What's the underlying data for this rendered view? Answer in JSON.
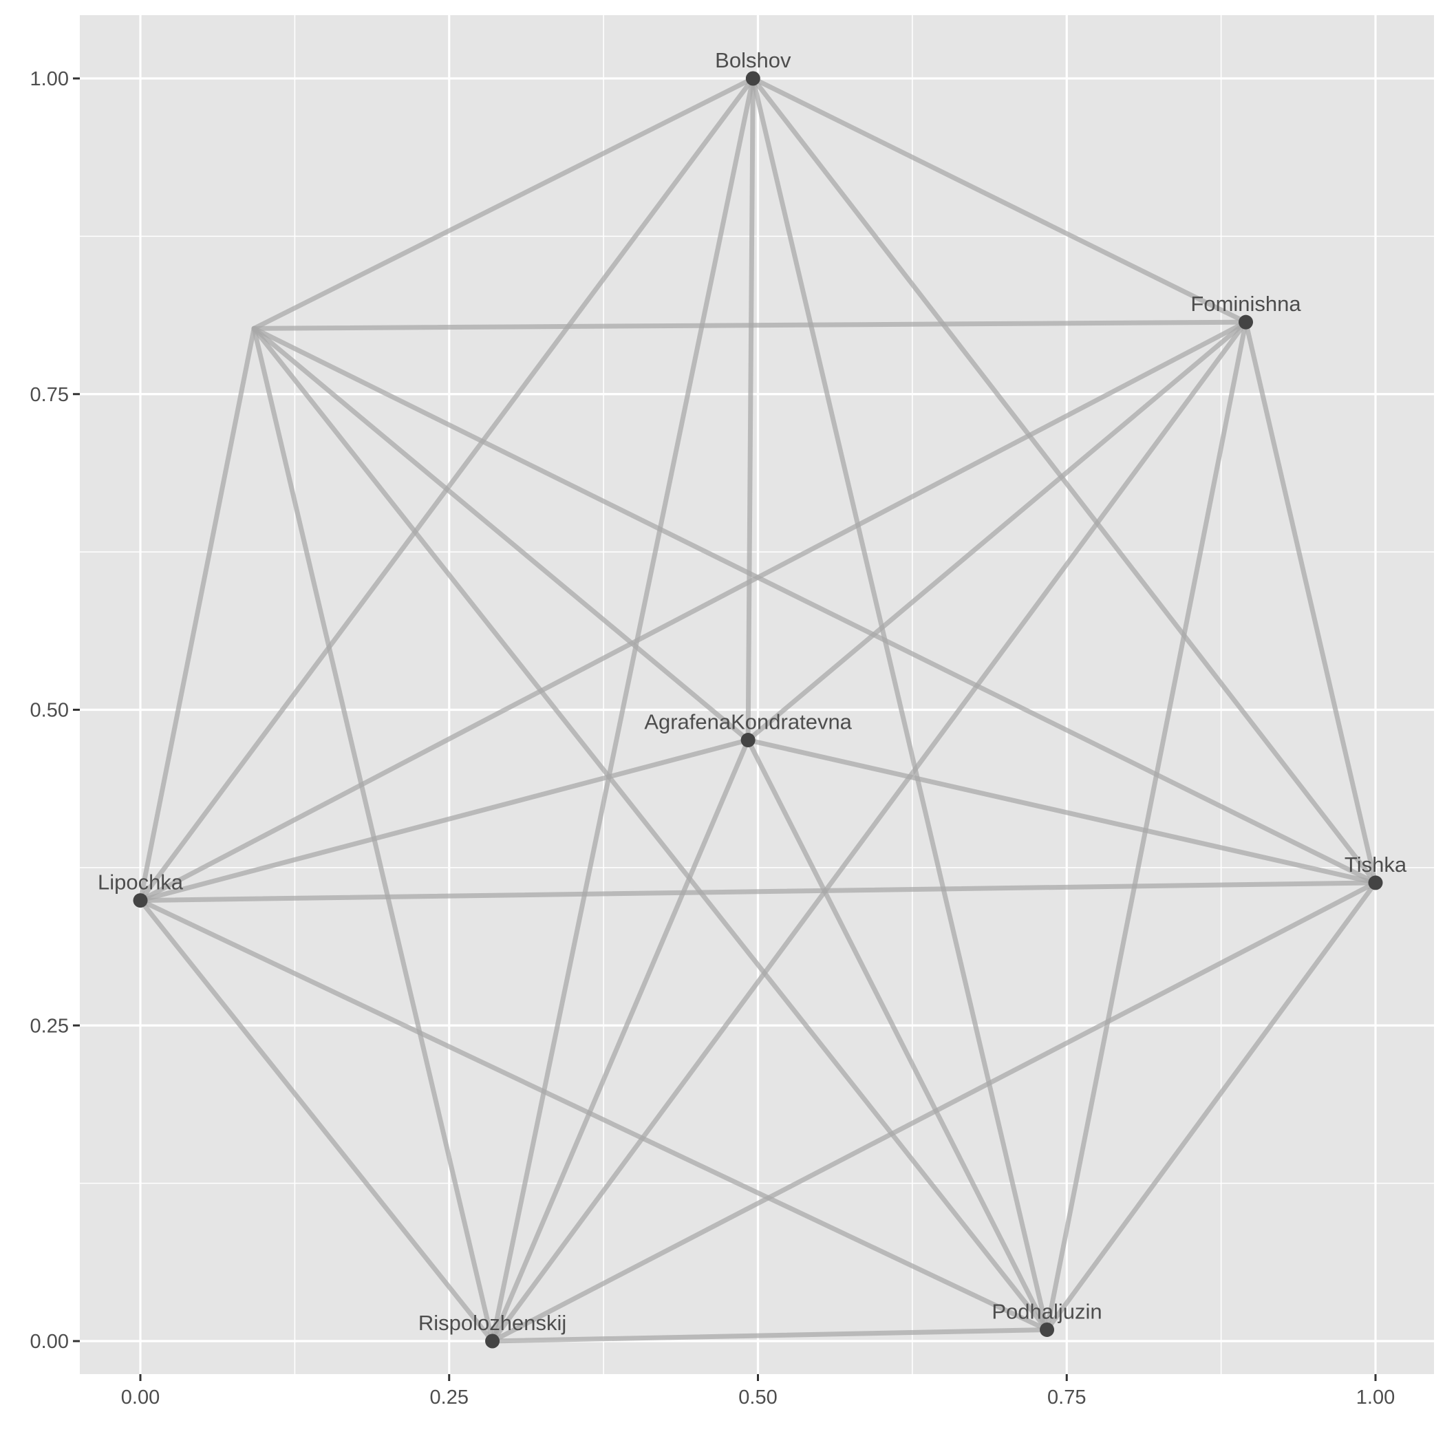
{
  "chart_data": {
    "type": "network",
    "title": "",
    "xlabel": "",
    "ylabel": "",
    "xlim": [
      -0.05,
      1.05
    ],
    "ylim": [
      -0.05,
      1.05
    ],
    "x_ticks": [
      "0.00",
      "0.25",
      "0.50",
      "0.75",
      "1.00"
    ],
    "y_ticks": [
      "0.00",
      "0.25",
      "0.50",
      "0.75",
      "1.00"
    ],
    "x_tick_values": [
      0,
      0.25,
      0.5,
      0.75,
      1
    ],
    "y_tick_values": [
      0,
      0.25,
      0.5,
      0.75,
      1
    ],
    "grid": true,
    "nodes": [
      {
        "id": "Bolshov",
        "label": "Bolshov",
        "x": 0.496,
        "y": 1.0
      },
      {
        "id": "Fominishna",
        "label": "Fominishna",
        "x": 0.895,
        "y": 0.807
      },
      {
        "id": "Tishka",
        "label": "Tishka",
        "x": 1.0,
        "y": 0.363
      },
      {
        "id": "Podhaljuzin",
        "label": "Podhaljuzin",
        "x": 0.734,
        "y": 0.009
      },
      {
        "id": "Rispolozhenskij",
        "label": "Rispolozhenskij",
        "x": 0.285,
        "y": 0.0
      },
      {
        "id": "Lipochka",
        "label": "Lipochka",
        "x": 0.0,
        "y": 0.349
      },
      {
        "id": "unlabeled",
        "label": "",
        "x": 0.092,
        "y": 0.802
      },
      {
        "id": "AgrafenaKondratevna",
        "label": "AgrafenaKondratevna",
        "x": 0.492,
        "y": 0.476
      }
    ],
    "edges": [
      [
        "Bolshov",
        "Fominishna"
      ],
      [
        "Bolshov",
        "Tishka"
      ],
      [
        "Bolshov",
        "Podhaljuzin"
      ],
      [
        "Bolshov",
        "Rispolozhenskij"
      ],
      [
        "Bolshov",
        "Lipochka"
      ],
      [
        "Bolshov",
        "unlabeled"
      ],
      [
        "Bolshov",
        "AgrafenaKondratevna"
      ],
      [
        "Fominishna",
        "Tishka"
      ],
      [
        "Fominishna",
        "Podhaljuzin"
      ],
      [
        "Fominishna",
        "Rispolozhenskij"
      ],
      [
        "Fominishna",
        "Lipochka"
      ],
      [
        "Fominishna",
        "unlabeled"
      ],
      [
        "Fominishna",
        "AgrafenaKondratevna"
      ],
      [
        "Tishka",
        "Podhaljuzin"
      ],
      [
        "Tishka",
        "Rispolozhenskij"
      ],
      [
        "Tishka",
        "Lipochka"
      ],
      [
        "Tishka",
        "unlabeled"
      ],
      [
        "Tishka",
        "AgrafenaKondratevna"
      ],
      [
        "Podhaljuzin",
        "Rispolozhenskij"
      ],
      [
        "Podhaljuzin",
        "Lipochka"
      ],
      [
        "Podhaljuzin",
        "unlabeled"
      ],
      [
        "Podhaljuzin",
        "AgrafenaKondratevna"
      ],
      [
        "Rispolozhenskij",
        "Lipochka"
      ],
      [
        "Rispolozhenskij",
        "unlabeled"
      ],
      [
        "Rispolozhenskij",
        "AgrafenaKondratevna"
      ],
      [
        "Lipochka",
        "unlabeled"
      ],
      [
        "Lipochka",
        "AgrafenaKondratevna"
      ],
      [
        "unlabeled",
        "AgrafenaKondratevna"
      ]
    ],
    "colors": {
      "panel": "#e5e5e5",
      "grid": "#ffffff",
      "edge": "#a8a8a8",
      "node": "#444444",
      "text": "#4d4d4d",
      "axis_ticks": "#333333"
    }
  }
}
